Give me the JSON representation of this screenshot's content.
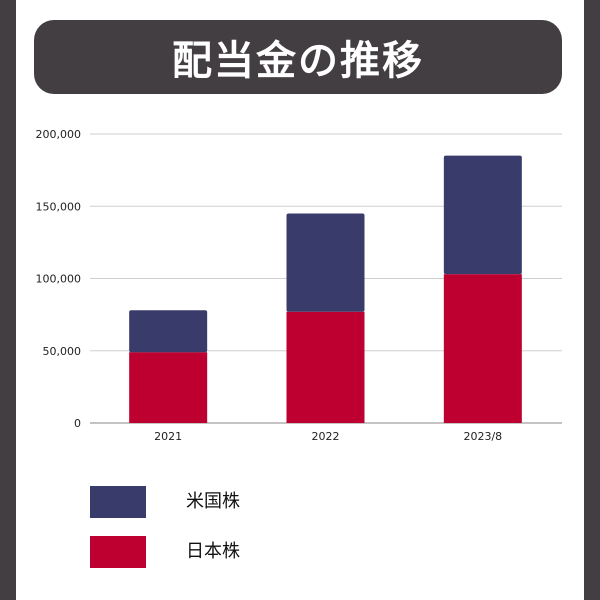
{
  "title": "配当金の推移",
  "colors": {
    "background": "#423e41",
    "us_stocks": "#393b6b",
    "jp_stocks": "#bd0030",
    "grid": "#cfcfcf"
  },
  "legend": {
    "items": [
      {
        "label": "米国株",
        "color": "#393b6b"
      },
      {
        "label": "日本株",
        "color": "#bd0030"
      }
    ]
  },
  "chart_data": {
    "type": "bar",
    "stacked": true,
    "categories": [
      "2021",
      "2022",
      "2023/8"
    ],
    "series": [
      {
        "name": "日本株",
        "color": "#bd0030",
        "values": [
          49000,
          77000,
          103000
        ]
      },
      {
        "name": "米国株",
        "color": "#393b6b",
        "values": [
          29000,
          68000,
          82000
        ]
      }
    ],
    "ylim": [
      0,
      200000
    ],
    "yticks": [
      0,
      50000,
      100000,
      150000,
      200000
    ],
    "ytick_labels": [
      "0",
      "50,000",
      "100,000",
      "150,000",
      "200,000"
    ],
    "grid": true,
    "legend_position": "bottom-left"
  }
}
